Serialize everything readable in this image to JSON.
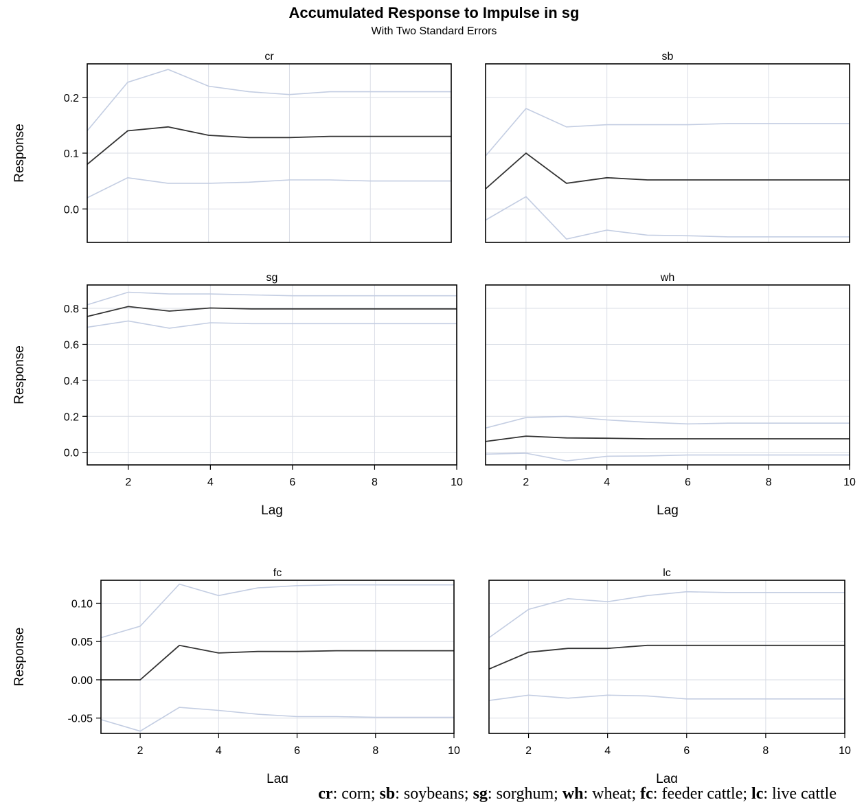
{
  "title": "Accumulated Response to Impulse in sg",
  "subtitle": "With Two Standard Errors",
  "ylabel": "Response",
  "xlabel": "Lag",
  "colors": {
    "response": "#333333",
    "bands": "#c3cde2",
    "grid": "#d9dde6"
  },
  "note": [
    {
      "key": "cr",
      "desc": ": corn; "
    },
    {
      "key": "sb",
      "desc": ": soybeans; "
    },
    {
      "key": "sg",
      "desc": ": sorghum; "
    },
    {
      "key": "wh",
      "desc": ": wheat; "
    },
    {
      "key": "fc",
      "desc": ": feeder cattle; "
    },
    {
      "key": "lc",
      "desc": ": live cattle"
    }
  ],
  "chart_data": [
    {
      "type": "line",
      "title": "cr",
      "x": [
        1,
        2,
        3,
        4,
        5,
        6,
        7,
        8,
        9,
        10
      ],
      "xlim": [
        1,
        10
      ],
      "xticks": [
        2,
        4,
        6,
        8,
        10
      ],
      "xtick_labels": [
        "2",
        "4",
        "6",
        "8",
        "10"
      ],
      "show_xticks": false,
      "ylim": [
        -0.06,
        0.26
      ],
      "yticks": [
        0.0,
        0.1,
        0.2
      ],
      "ytick_labels": [
        "0.0",
        "0.1",
        "0.2"
      ],
      "show_yticks": true,
      "show_xlabel": false,
      "show_ylabel": true,
      "grid": true,
      "series": [
        {
          "role": "upper",
          "values": [
            0.14,
            0.227,
            0.25,
            0.22,
            0.21,
            0.205,
            0.21,
            0.21,
            0.21,
            0.21
          ]
        },
        {
          "role": "response",
          "values": [
            0.08,
            0.14,
            0.147,
            0.132,
            0.128,
            0.128,
            0.13,
            0.13,
            0.13,
            0.13
          ]
        },
        {
          "role": "lower",
          "values": [
            0.02,
            0.056,
            0.046,
            0.046,
            0.048,
            0.052,
            0.052,
            0.05,
            0.05,
            0.05
          ]
        }
      ]
    },
    {
      "type": "line",
      "title": "sb",
      "x": [
        1,
        2,
        3,
        4,
        5,
        6,
        7,
        8,
        9,
        10
      ],
      "xlim": [
        1,
        10
      ],
      "xticks": [
        2,
        4,
        6,
        8,
        10
      ],
      "xtick_labels": [
        "2",
        "4",
        "6",
        "8",
        "10"
      ],
      "show_xticks": false,
      "ylim": [
        -0.06,
        0.26
      ],
      "yticks": [
        0.0,
        0.1,
        0.2
      ],
      "ytick_labels": [
        "0.0",
        "0.1",
        "0.2"
      ],
      "show_yticks": false,
      "show_xlabel": false,
      "show_ylabel": false,
      "grid": true,
      "series": [
        {
          "role": "upper",
          "values": [
            0.095,
            0.18,
            0.147,
            0.151,
            0.151,
            0.151,
            0.153,
            0.153,
            0.153,
            0.153
          ]
        },
        {
          "role": "response",
          "values": [
            0.036,
            0.1,
            0.046,
            0.056,
            0.052,
            0.052,
            0.052,
            0.052,
            0.052,
            0.052
          ]
        },
        {
          "role": "lower",
          "values": [
            -0.02,
            0.022,
            -0.054,
            -0.038,
            -0.047,
            -0.048,
            -0.05,
            -0.05,
            -0.05,
            -0.05
          ]
        }
      ]
    },
    {
      "type": "line",
      "title": "sg",
      "x": [
        1,
        2,
        3,
        4,
        5,
        6,
        7,
        8,
        9,
        10
      ],
      "xlim": [
        1,
        10
      ],
      "xticks": [
        2,
        4,
        6,
        8,
        10
      ],
      "xtick_labels": [
        "2",
        "4",
        "6",
        "8",
        "10"
      ],
      "show_xticks": true,
      "ylim": [
        -0.07,
        0.93
      ],
      "yticks": [
        0.0,
        0.2,
        0.4,
        0.6,
        0.8
      ],
      "ytick_labels": [
        "0.0",
        "0.2",
        "0.4",
        "0.6",
        "0.8"
      ],
      "show_yticks": true,
      "show_xlabel": true,
      "show_ylabel": true,
      "grid": true,
      "series": [
        {
          "role": "upper",
          "values": [
            0.82,
            0.89,
            0.88,
            0.88,
            0.875,
            0.87,
            0.87,
            0.87,
            0.87,
            0.87
          ]
        },
        {
          "role": "response",
          "values": [
            0.755,
            0.81,
            0.785,
            0.802,
            0.797,
            0.797,
            0.797,
            0.797,
            0.797,
            0.797
          ]
        },
        {
          "role": "lower",
          "values": [
            0.695,
            0.73,
            0.69,
            0.72,
            0.715,
            0.715,
            0.715,
            0.715,
            0.715,
            0.715
          ]
        }
      ]
    },
    {
      "type": "line",
      "title": "wh",
      "x": [
        1,
        2,
        3,
        4,
        5,
        6,
        7,
        8,
        9,
        10
      ],
      "xlim": [
        1,
        10
      ],
      "xticks": [
        2,
        4,
        6,
        8,
        10
      ],
      "xtick_labels": [
        "2",
        "4",
        "6",
        "8",
        "10"
      ],
      "show_xticks": true,
      "ylim": [
        -0.07,
        0.93
      ],
      "yticks": [
        0.0,
        0.2,
        0.4,
        0.6,
        0.8
      ],
      "ytick_labels": [
        "0.0",
        "0.2",
        "0.4",
        "0.6",
        "0.8"
      ],
      "show_yticks": false,
      "show_xlabel": true,
      "show_ylabel": false,
      "grid": true,
      "series": [
        {
          "role": "upper",
          "values": [
            0.135,
            0.193,
            0.2,
            0.18,
            0.167,
            0.158,
            0.162,
            0.162,
            0.162,
            0.162
          ]
        },
        {
          "role": "response",
          "values": [
            0.06,
            0.09,
            0.08,
            0.078,
            0.075,
            0.075,
            0.075,
            0.075,
            0.075,
            0.075
          ]
        },
        {
          "role": "lower",
          "values": [
            -0.01,
            -0.005,
            -0.048,
            -0.022,
            -0.02,
            -0.015,
            -0.015,
            -0.015,
            -0.015,
            -0.015
          ]
        }
      ]
    },
    {
      "type": "line",
      "title": "fc",
      "x": [
        1,
        2,
        3,
        4,
        5,
        6,
        7,
        8,
        9,
        10
      ],
      "xlim": [
        1,
        10
      ],
      "xticks": [
        2,
        4,
        6,
        8,
        10
      ],
      "xtick_labels": [
        "2",
        "4",
        "6",
        "8",
        "10"
      ],
      "show_xticks": true,
      "ylim": [
        -0.07,
        0.13
      ],
      "yticks": [
        -0.05,
        0.0,
        0.05,
        0.1
      ],
      "ytick_labels": [
        "-0.05",
        "0.00",
        "0.05",
        "0.10"
      ],
      "show_yticks": true,
      "show_xlabel": true,
      "show_ylabel": true,
      "grid": true,
      "series": [
        {
          "role": "upper",
          "values": [
            0.055,
            0.07,
            0.125,
            0.11,
            0.12,
            0.123,
            0.124,
            0.124,
            0.124,
            0.124
          ]
        },
        {
          "role": "response",
          "values": [
            0.0,
            0.0,
            0.045,
            0.035,
            0.037,
            0.037,
            0.038,
            0.038,
            0.038,
            0.038
          ]
        },
        {
          "role": "lower",
          "values": [
            -0.052,
            -0.067,
            -0.036,
            -0.04,
            -0.045,
            -0.048,
            -0.048,
            -0.049,
            -0.049,
            -0.049
          ]
        }
      ]
    },
    {
      "type": "line",
      "title": "lc",
      "x": [
        1,
        2,
        3,
        4,
        5,
        6,
        7,
        8,
        9,
        10
      ],
      "xlim": [
        1,
        10
      ],
      "xticks": [
        2,
        4,
        6,
        8,
        10
      ],
      "xtick_labels": [
        "2",
        "4",
        "6",
        "8",
        "10"
      ],
      "show_xticks": true,
      "ylim": [
        -0.07,
        0.13
      ],
      "yticks": [
        -0.05,
        0.0,
        0.05,
        0.1
      ],
      "ytick_labels": [
        "-0.05",
        "0.00",
        "0.05",
        "0.10"
      ],
      "show_yticks": false,
      "show_xlabel": true,
      "show_ylabel": false,
      "grid": true,
      "series": [
        {
          "role": "upper",
          "values": [
            0.055,
            0.092,
            0.106,
            0.102,
            0.11,
            0.115,
            0.114,
            0.114,
            0.114,
            0.114
          ]
        },
        {
          "role": "response",
          "values": [
            0.014,
            0.036,
            0.041,
            0.041,
            0.045,
            0.045,
            0.045,
            0.045,
            0.045,
            0.045
          ]
        },
        {
          "role": "lower",
          "values": [
            -0.027,
            -0.02,
            -0.024,
            -0.02,
            -0.021,
            -0.025,
            -0.025,
            -0.025,
            -0.025,
            -0.025
          ]
        }
      ]
    }
  ]
}
